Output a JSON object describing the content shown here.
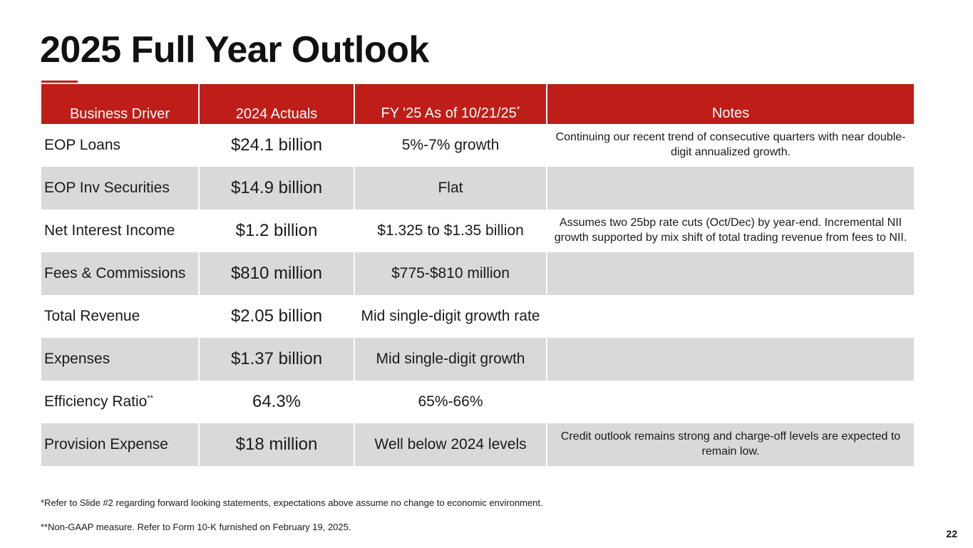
{
  "title": "2025 Full Year Outlook",
  "accent_color": "#be1e17",
  "table": {
    "headers": {
      "driver": "Business Driver",
      "actuals": "2024 Actuals",
      "fy": "FY '25 As of 10/21/25",
      "fy_mark": "*",
      "notes": "Notes"
    },
    "rows": [
      {
        "driver": "EOP Loans",
        "actual": "$24.1 billion",
        "fy": "5%-7% growth",
        "notes": "Continuing our recent trend of consecutive quarters with near double-digit annualized growth."
      },
      {
        "driver": "EOP Inv Securities",
        "actual": "$14.9 billion",
        "fy": "Flat",
        "notes": ""
      },
      {
        "driver": "Net Interest Income",
        "actual": "$1.2 billion",
        "fy": "$1.325 to $1.35 billion",
        "notes": "Assumes two 25bp rate cuts (Oct/Dec) by year-end. Incremental NII growth supported by mix shift of total trading revenue from fees to NII."
      },
      {
        "driver": "Fees & Commissions",
        "actual": "$810 million",
        "fy": "$775-$810 million",
        "notes": ""
      },
      {
        "driver": "Total Revenue",
        "actual": "$2.05 billion",
        "fy": "Mid single-digit growth rate",
        "notes": ""
      },
      {
        "driver": "Expenses",
        "actual": "$1.37 billion",
        "fy": "Mid single-digit growth",
        "notes": ""
      },
      {
        "driver": "Efficiency Ratio",
        "driver_mark": "**",
        "actual": "64.3%",
        "fy": "65%-66%",
        "notes": ""
      },
      {
        "driver": "Provision Expense",
        "actual": "$18 million",
        "fy": "Well below 2024 levels",
        "notes": "Credit outlook remains strong and charge-off levels are expected to remain low."
      }
    ]
  },
  "footnotes": {
    "fn1": "*Refer to Slide #2 regarding forward looking statements, expectations above assume no change to economic environment.",
    "fn2": "**Non-GAAP measure. Refer to Form 10-K furnished on February 19, 2025."
  },
  "page_number": "22"
}
